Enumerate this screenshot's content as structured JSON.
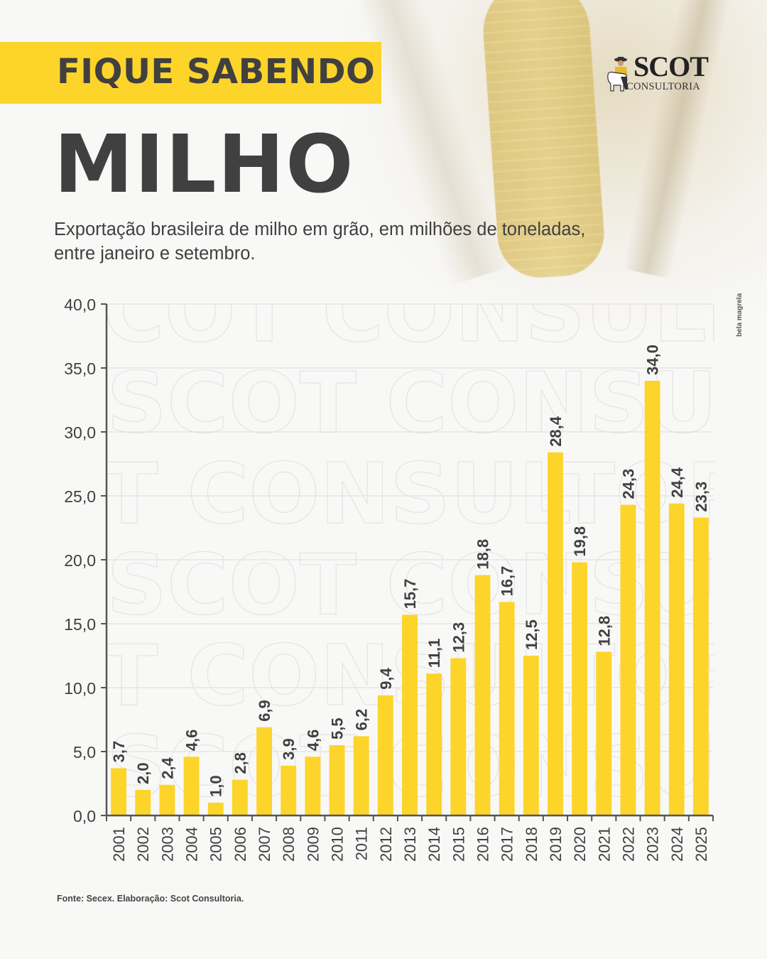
{
  "header": {
    "banner": "FIQUE SABENDO",
    "title": "MILHO",
    "subtitle_line1": "Exportação brasileira de milho em grão, em milhões de toneladas,",
    "subtitle_line2": "entre janeiro e setembro."
  },
  "logo": {
    "name": "SCOT",
    "tagline": "CONSULTORIA"
  },
  "photo_credit": "bela magrela",
  "watermark": "SCOT CONSULTORIA",
  "footer": {
    "source": "Fonte: Secex. Elaboração: Scot Consultoria."
  },
  "colors": {
    "accent": "#fdd42a",
    "bar": "#fdd42a",
    "text": "#414040",
    "axis": "#555555",
    "grid": "#dddddd"
  },
  "chart_data": {
    "type": "bar",
    "title": "MILHO",
    "subtitle": "Exportação brasileira de milho em grão, em milhões de toneladas, entre janeiro e setembro.",
    "xlabel": "",
    "ylabel": "",
    "ylim": [
      0,
      40
    ],
    "yticks": [
      0,
      5,
      10,
      15,
      20,
      25,
      30,
      35,
      40
    ],
    "ytick_labels": [
      "0,0",
      "5,0",
      "10,0",
      "15,0",
      "20,0",
      "25,0",
      "30,0",
      "35,0",
      "40,0"
    ],
    "grid": true,
    "legend": "none",
    "categories": [
      "2001",
      "2002",
      "2003",
      "2004",
      "2005",
      "2006",
      "2007",
      "2008",
      "2009",
      "2010",
      "2011",
      "2012",
      "2013",
      "2014",
      "2015",
      "2016",
      "2017",
      "2018",
      "2019",
      "2020",
      "2021",
      "2022",
      "2023",
      "2024",
      "2025"
    ],
    "values": [
      3.7,
      2.0,
      2.4,
      4.6,
      1.0,
      2.8,
      6.9,
      3.9,
      4.6,
      5.5,
      6.2,
      9.4,
      15.7,
      11.1,
      12.3,
      18.8,
      16.7,
      12.5,
      28.4,
      19.8,
      12.8,
      24.3,
      34.0,
      24.4,
      23.3
    ],
    "value_labels": [
      "3,7",
      "2,0",
      "2,4",
      "4,6",
      "1,0",
      "2,8",
      "6,9",
      "3,9",
      "4,6",
      "5,5",
      "6,2",
      "9,4",
      "15,7",
      "11,1",
      "12,3",
      "18,8",
      "16,7",
      "12,5",
      "28,4",
      "19,8",
      "12,8",
      "24,3",
      "34,0",
      "24,4",
      "23,3"
    ]
  }
}
